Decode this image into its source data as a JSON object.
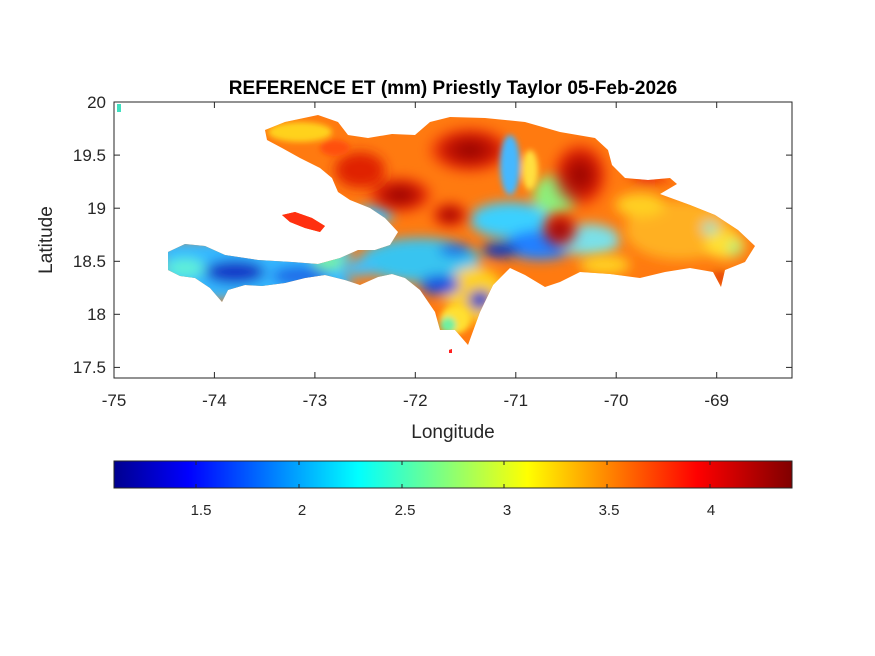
{
  "title": "REFERENCE ET (mm) Priestly Taylor 05-Feb-2026",
  "chart_data": {
    "type": "heatmap",
    "title": "REFERENCE ET (mm) Priestly Taylor 05-Feb-2026",
    "xlabel": "Longitude",
    "ylabel": "Latitude",
    "xlim": [
      -75,
      -68.25
    ],
    "ylim": [
      17.4,
      20
    ],
    "xticks": [
      "-75",
      "-74",
      "-73",
      "-72",
      "-71",
      "-70",
      "-69"
    ],
    "yticks": [
      "20",
      "19.5",
      "19",
      "18.5",
      "18",
      "17.5"
    ],
    "colorbar": {
      "colormap": "jet",
      "range": [
        1.1,
        4.4
      ],
      "ticks": [
        "1.5",
        "2",
        "2.5",
        "3",
        "3.5",
        "4"
      ],
      "location": "south"
    },
    "regions": [
      {
        "name": "",
        "approx_value": 3.7
      },
      {
        "name": "",
        "approx_value": 2.2
      }
    ]
  }
}
